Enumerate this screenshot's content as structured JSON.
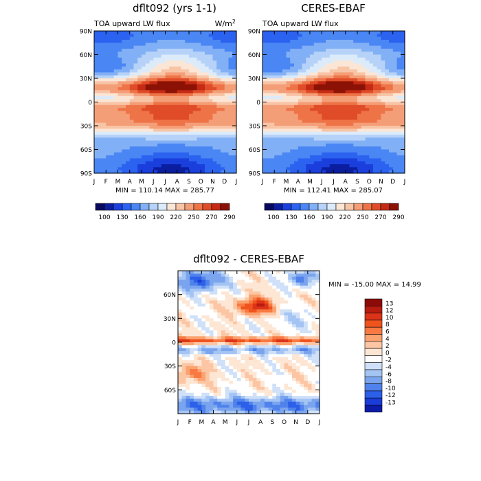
{
  "chart_data": [
    {
      "type": "heatmap",
      "title": "dflt092 (yrs 1-1)",
      "subtitle_left": "TOA upward LW flux",
      "units": "W/m",
      "units_exponent": "2",
      "x_ticks": [
        "J",
        "F",
        "M",
        "A",
        "M",
        "J",
        "J",
        "A",
        "S",
        "O",
        "N",
        "D",
        "J"
      ],
      "y_ticks": [
        "90N",
        "60N",
        "30N",
        "0",
        "30S",
        "60S",
        "90S"
      ],
      "stats": "MIN = 110.14  MAX = 285.77",
      "colorbar_ticks": [
        "100",
        "130",
        "160",
        "190",
        "220",
        "250",
        "270",
        "290"
      ],
      "colorbar_colors": [
        "#08085e",
        "#0c1ea0",
        "#1a3fdc",
        "#2c62f0",
        "#4a86f4",
        "#82b0f6",
        "#b6d2f8",
        "#dcebfa",
        "#fbe6d6",
        "#f8c4a6",
        "#f49e78",
        "#ee7448",
        "#e04c28",
        "#c42a14",
        "#8c1206"
      ],
      "ylim": [
        -90,
        90
      ]
    },
    {
      "type": "heatmap",
      "title": "CERES-EBAF",
      "subtitle_left": "TOA upward LW flux",
      "x_ticks": [
        "J",
        "F",
        "M",
        "A",
        "M",
        "J",
        "J",
        "A",
        "S",
        "O",
        "N",
        "D",
        "J"
      ],
      "y_ticks": [
        "90N",
        "60N",
        "30N",
        "0",
        "30S",
        "60S",
        "90S"
      ],
      "stats": "MIN = 112.41  MAX = 285.07",
      "colorbar_ticks": [
        "100",
        "130",
        "160",
        "190",
        "220",
        "250",
        "270",
        "290"
      ],
      "colorbar_colors": [
        "#08085e",
        "#0c1ea0",
        "#1a3fdc",
        "#2c62f0",
        "#4a86f4",
        "#82b0f6",
        "#b6d2f8",
        "#dcebfa",
        "#fbe6d6",
        "#f8c4a6",
        "#f49e78",
        "#ee7448",
        "#e04c28",
        "#c42a14",
        "#8c1206"
      ],
      "ylim": [
        -90,
        90
      ]
    },
    {
      "type": "heatmap",
      "title": "dflt092 - CERES-EBAF",
      "x_ticks": [
        "J",
        "F",
        "M",
        "A",
        "M",
        "J",
        "J",
        "A",
        "S",
        "O",
        "N",
        "D",
        "J"
      ],
      "y_ticks": [
        "60N",
        "30N",
        "0",
        "30S",
        "60S"
      ],
      "stats": "MIN = -15.00 MAX =  14.99",
      "colorbar_labels": [
        "13",
        "12",
        "10",
        "8",
        "6",
        "4",
        "2",
        "0",
        "-2",
        "-4",
        "-6",
        "-8",
        "-10",
        "-12",
        "-13"
      ],
      "colorbar_colors": [
        "#8c0a08",
        "#b81c10",
        "#dc3418",
        "#f0541e",
        "#f87a42",
        "#faa270",
        "#fcc6a4",
        "#fde6d4",
        "#ffffff",
        "#cfe0f8",
        "#a4c4f4",
        "#7aa4ee",
        "#5082ec",
        "#2c60e8",
        "#1a3cd8",
        "#0c1ca8"
      ],
      "ylim": [
        -90,
        90
      ]
    }
  ]
}
